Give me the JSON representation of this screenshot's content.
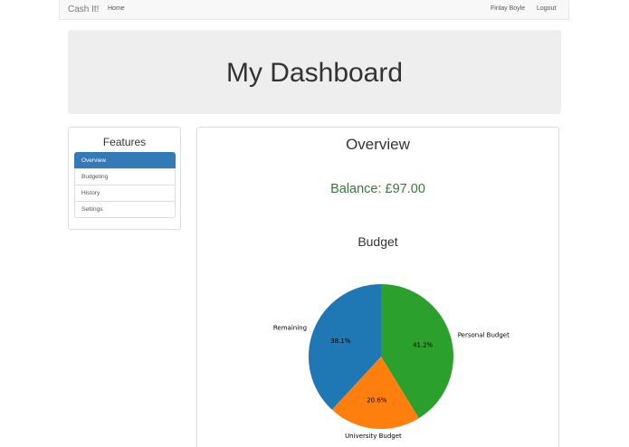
{
  "navbar": {
    "brand": "Cash It!",
    "home": "Home",
    "user": "Finlay Boyle",
    "logout": "Logout"
  },
  "jumbotron": {
    "title": "My Dashboard"
  },
  "features": {
    "title": "Features",
    "items": [
      {
        "label": "Overview",
        "active": true
      },
      {
        "label": "Budgeting",
        "active": false
      },
      {
        "label": "History",
        "active": false
      },
      {
        "label": "Settings",
        "active": false
      }
    ]
  },
  "overview": {
    "title": "Overview",
    "balance": "Balance: £97.00",
    "budget_title": "Budget"
  },
  "chart_data": {
    "type": "pie",
    "slices": [
      {
        "label": "Personal Budget",
        "value": 41.2,
        "pct_label": "41.2%",
        "color": "#2ca02c"
      },
      {
        "label": "University Budget",
        "value": 20.6,
        "pct_label": "20.6%",
        "color": "#ff7f0e"
      },
      {
        "label": "Remaining",
        "value": 38.1,
        "pct_label": "38.1%",
        "color": "#1f77b4"
      }
    ]
  }
}
